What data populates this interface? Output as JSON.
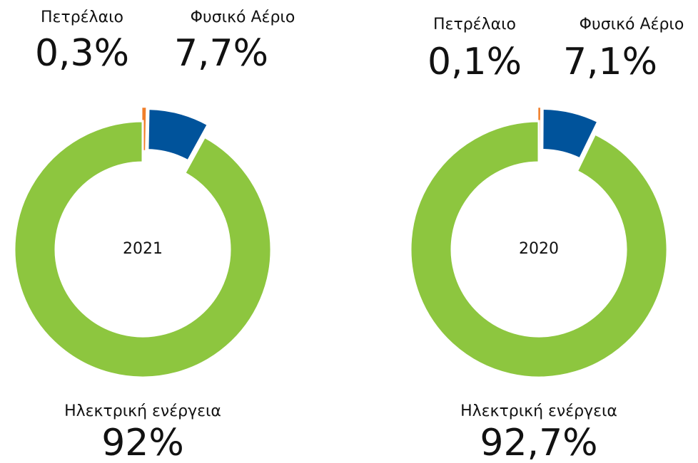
{
  "chart_data": [
    {
      "type": "donut",
      "center_label": "2021",
      "categories": [
        "Πετρέλαιο",
        "Φυσικό Αέριο",
        "Ηλεκτρική ενέργεια"
      ],
      "values": [
        0.3,
        7.7,
        92
      ],
      "value_labels": [
        "0,3%",
        "7,7%",
        "92%"
      ],
      "colors": [
        "#f07f2b",
        "#00539b",
        "#8dc63f"
      ]
    },
    {
      "type": "donut",
      "center_label": "2020",
      "categories": [
        "Πετρέλαιο",
        "Φυσικό Αέριο",
        "Ηλεκτρική ενέργεια"
      ],
      "values": [
        0.1,
        7.1,
        92.7
      ],
      "value_labels": [
        "0,1%",
        "7,1%",
        "92,7%"
      ],
      "colors": [
        "#f07f2b",
        "#00539b",
        "#8dc63f"
      ]
    }
  ]
}
